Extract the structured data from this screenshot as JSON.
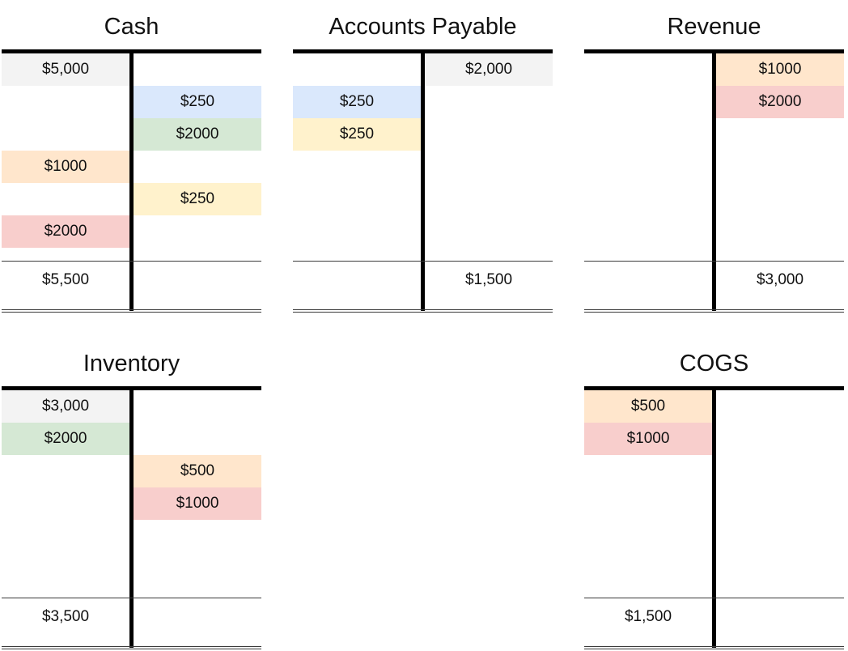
{
  "colors": {
    "opening": "#f3f3f3",
    "blue": "#dae8fc",
    "green": "#d5e8d4",
    "orange": "#ffe6cc",
    "yellow": "#fff2cc",
    "red": "#f8cecc"
  },
  "accounts": [
    {
      "id": "cash",
      "title": "Cash",
      "entries": [
        {
          "side": "debit",
          "row": 0,
          "amount": "$5,000",
          "color": "opening"
        },
        {
          "side": "credit",
          "row": 1,
          "amount": "$250",
          "color": "blue"
        },
        {
          "side": "credit",
          "row": 2,
          "amount": "$2000",
          "color": "green"
        },
        {
          "side": "debit",
          "row": 3,
          "amount": "$1000",
          "color": "orange"
        },
        {
          "side": "credit",
          "row": 4,
          "amount": "$250",
          "color": "yellow"
        },
        {
          "side": "debit",
          "row": 5,
          "amount": "$2000",
          "color": "red"
        }
      ],
      "total": {
        "side": "debit",
        "amount": "$5,500"
      }
    },
    {
      "id": "accounts-payable",
      "title": "Accounts Payable",
      "entries": [
        {
          "side": "credit",
          "row": 0,
          "amount": "$2,000",
          "color": "opening"
        },
        {
          "side": "debit",
          "row": 1,
          "amount": "$250",
          "color": "blue"
        },
        {
          "side": "debit",
          "row": 2,
          "amount": "$250",
          "color": "yellow"
        }
      ],
      "total": {
        "side": "credit",
        "amount": "$1,500"
      }
    },
    {
      "id": "revenue",
      "title": "Revenue",
      "entries": [
        {
          "side": "credit",
          "row": 0,
          "amount": "$1000",
          "color": "orange"
        },
        {
          "side": "credit",
          "row": 1,
          "amount": "$2000",
          "color": "red"
        }
      ],
      "total": {
        "side": "credit",
        "amount": "$3,000"
      }
    },
    {
      "id": "inventory",
      "title": "Inventory",
      "entries": [
        {
          "side": "debit",
          "row": 0,
          "amount": "$3,000",
          "color": "opening"
        },
        {
          "side": "debit",
          "row": 1,
          "amount": "$2000",
          "color": "green"
        },
        {
          "side": "credit",
          "row": 2,
          "amount": "$500",
          "color": "orange"
        },
        {
          "side": "credit",
          "row": 3,
          "amount": "$1000",
          "color": "red"
        }
      ],
      "total": {
        "side": "debit",
        "amount": "$3,500"
      }
    },
    {
      "id": "cogs",
      "title": "COGS",
      "entries": [
        {
          "side": "debit",
          "row": 0,
          "amount": "$500",
          "color": "orange"
        },
        {
          "side": "debit",
          "row": 1,
          "amount": "$1000",
          "color": "red"
        }
      ],
      "total": {
        "side": "debit",
        "amount": "$1,500"
      }
    }
  ]
}
